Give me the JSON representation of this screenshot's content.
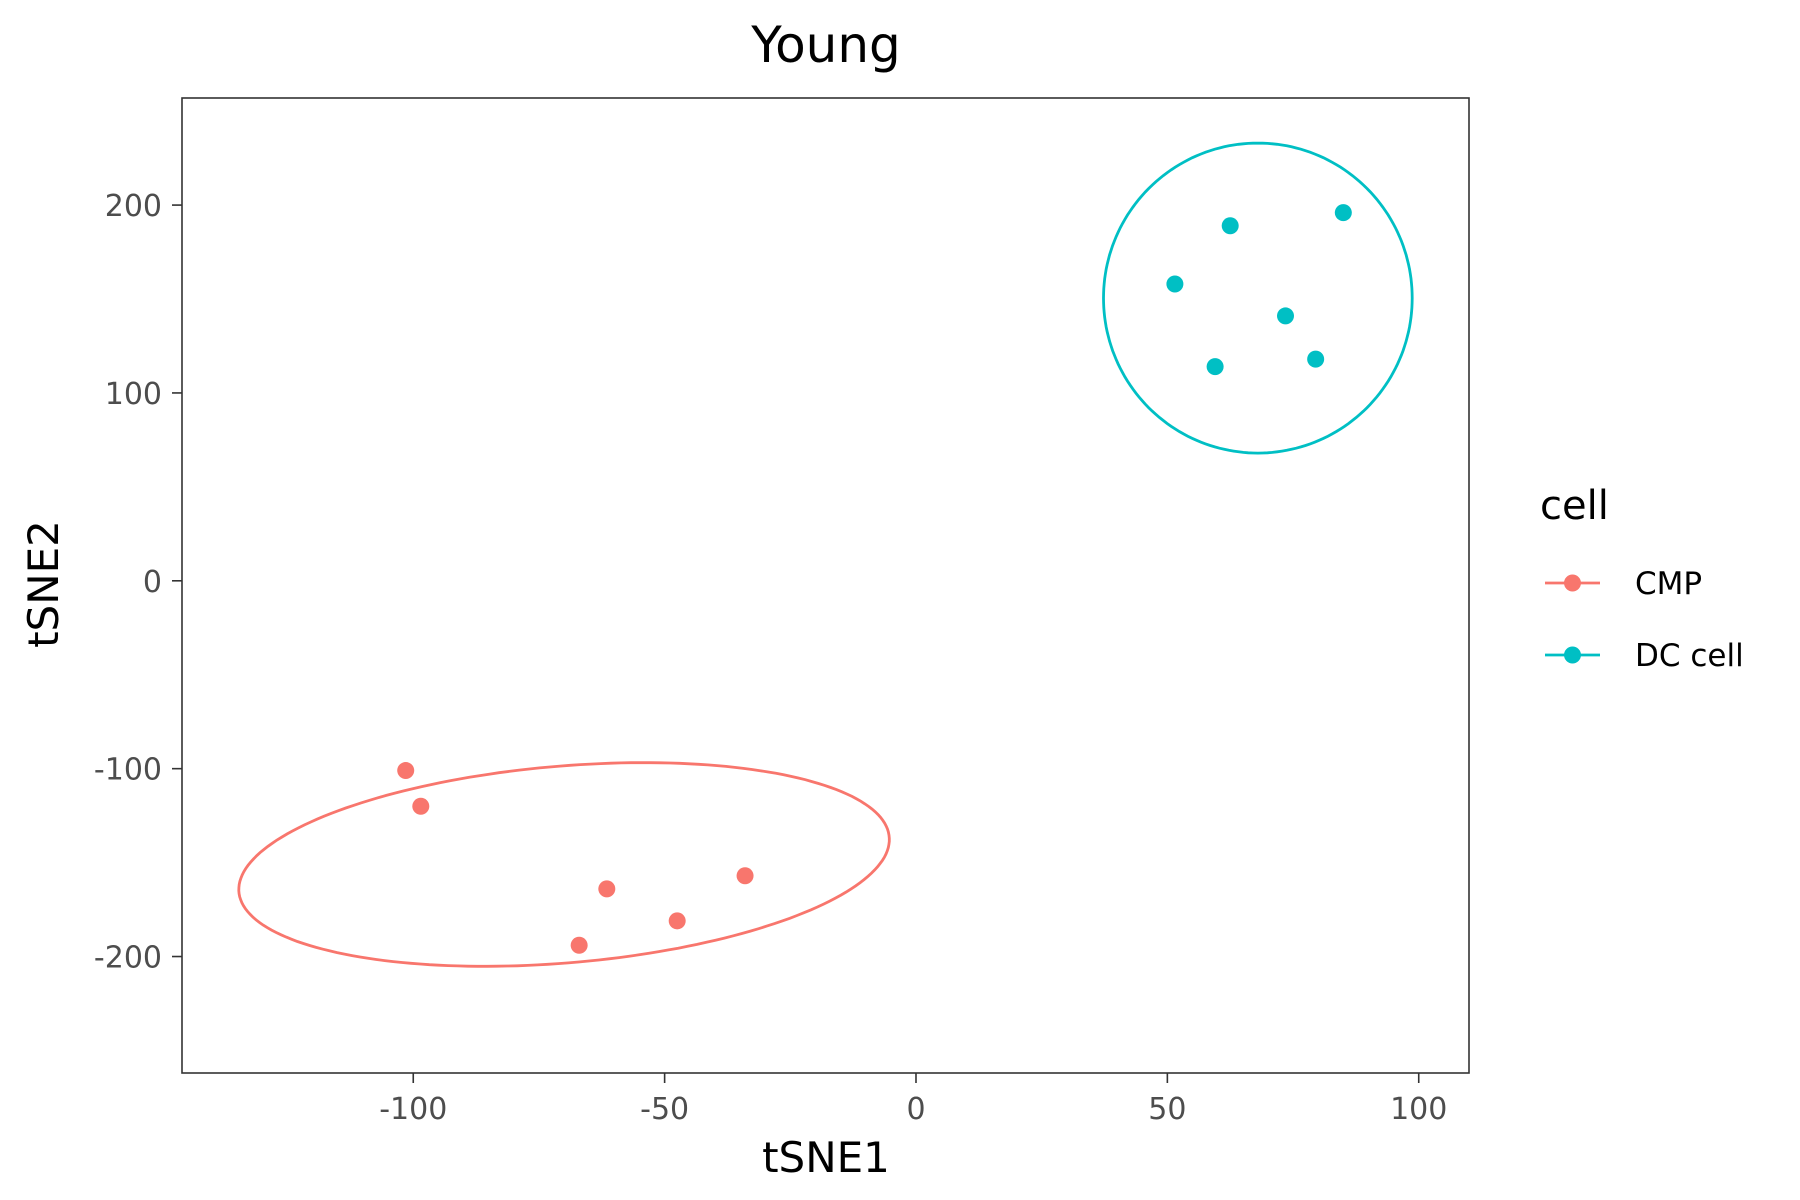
{
  "chart_data": {
    "type": "scatter",
    "title": "Young",
    "xlabel": "tSNE1",
    "ylabel": "tSNE2",
    "xlim": [
      -146,
      110
    ],
    "ylim": [
      -262,
      257
    ],
    "xticks": [
      -100,
      -50,
      0,
      50,
      100
    ],
    "yticks": [
      -200,
      -100,
      0,
      100,
      200
    ],
    "grid": false,
    "legend": {
      "title": "cell",
      "position": "right"
    },
    "series": [
      {
        "name": "CMP",
        "color": "#F8766D",
        "points": [
          {
            "x": -101.5,
            "y": -101
          },
          {
            "x": -98.5,
            "y": -120
          },
          {
            "x": -61.5,
            "y": -164
          },
          {
            "x": -47.5,
            "y": -181
          },
          {
            "x": -67,
            "y": -194
          },
          {
            "x": -34,
            "y": -157
          }
        ],
        "ellipse": {
          "center": [
            -70,
            -151
          ],
          "radius_x": 68,
          "radius_y": 50,
          "rotation_deg": 27
        }
      },
      {
        "name": "DC cell",
        "color": "#00BFC4",
        "points": [
          {
            "x": 62.5,
            "y": 189
          },
          {
            "x": 85,
            "y": 196
          },
          {
            "x": 51.5,
            "y": 158
          },
          {
            "x": 73.5,
            "y": 141
          },
          {
            "x": 79.5,
            "y": 118
          },
          {
            "x": 59.5,
            "y": 114
          }
        ],
        "ellipse": {
          "center": [
            68,
            150.5
          ],
          "radius_x": 30.7,
          "radius_y": 82.5,
          "rotation_deg": 0
        }
      }
    ]
  }
}
